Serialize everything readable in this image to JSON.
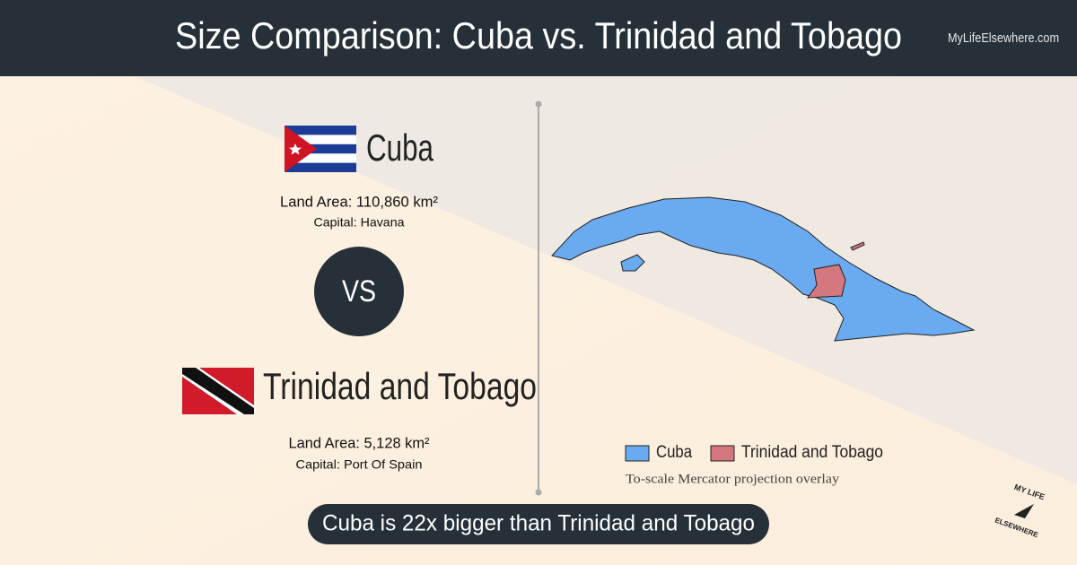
{
  "header": {
    "title": "Size Comparison: Cuba vs. Trinidad and Tobago",
    "site": "MyLifeElsewhere.com"
  },
  "countries": [
    {
      "name": "Cuba",
      "land_area": "Land Area: 110,860 km²",
      "capital": "Capital: Havana"
    },
    {
      "name": "Trinidad and Tobago",
      "land_area": "Land Area: 5,128 km²",
      "capital": "Capital: Port Of Spain"
    }
  ],
  "vs": "VS",
  "legend": [
    "Cuba",
    "Trinidad and Tobago"
  ],
  "note": "To-scale Mercator projection overlay",
  "summary": "Cuba is 22x bigger than Trinidad and Tobago",
  "logo": [
    "MY LIFE",
    "ELSEWHERE"
  ]
}
